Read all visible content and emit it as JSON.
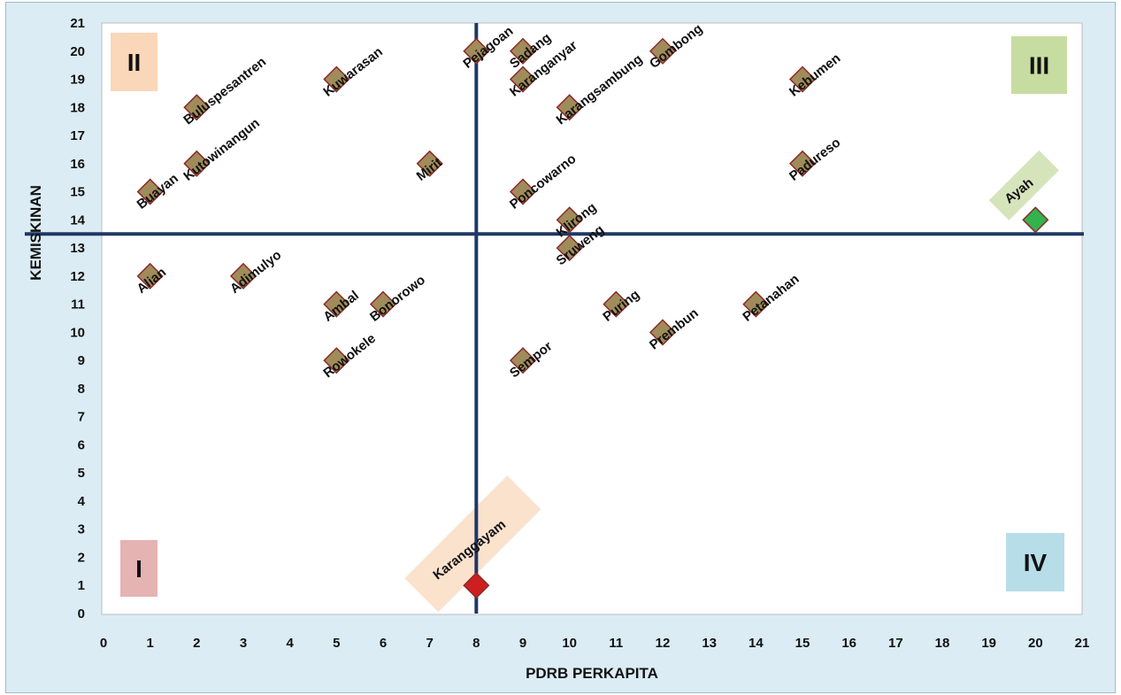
{
  "chart_data": {
    "type": "scatter",
    "title": "",
    "xlabel": "PDRB PERKAPITA",
    "ylabel": "KEMISKINAN",
    "xlim": [
      0,
      21
    ],
    "ylim": [
      0,
      21
    ],
    "xticks": [
      "0",
      "1",
      "2",
      "3",
      "4",
      "5",
      "6",
      "7",
      "8",
      "9",
      "10",
      "11",
      "12",
      "13",
      "14",
      "15",
      "16",
      "17",
      "18",
      "19",
      "20",
      "21"
    ],
    "yticks": [
      "0",
      "1",
      "2",
      "3",
      "4",
      "5",
      "6",
      "7",
      "8",
      "9",
      "10",
      "11",
      "12",
      "13",
      "14",
      "15",
      "16",
      "17",
      "18",
      "19",
      "20",
      "21"
    ],
    "grid": false,
    "divider_lines": {
      "x": 8,
      "y": 13.5,
      "color": "#1f3864"
    },
    "quadrants": [
      {
        "label": "I",
        "position": "bottom-left",
        "color": "#e6b3b3"
      },
      {
        "label": "II",
        "position": "top-left",
        "color": "#fad7b8"
      },
      {
        "label": "III",
        "position": "top-right",
        "color": "#c6dca0"
      },
      {
        "label": "IV",
        "position": "bottom-right",
        "color": "#b7dde8"
      }
    ],
    "marker_colors": {
      "default": "#a08c5a",
      "highlight_high": "#33b34d",
      "highlight_low": "#cc1f1f"
    },
    "points": [
      {
        "name": "Buluspesantren",
        "x": 2,
        "y": 18,
        "kind": "default"
      },
      {
        "name": "Kuwarasan",
        "x": 5,
        "y": 19,
        "kind": "default"
      },
      {
        "name": "Pejagoan",
        "x": 8,
        "y": 20,
        "kind": "default"
      },
      {
        "name": "Sadang",
        "x": 9,
        "y": 20,
        "kind": "default"
      },
      {
        "name": "Karanganyar",
        "x": 9,
        "y": 19,
        "kind": "default"
      },
      {
        "name": "Karangsambung",
        "x": 10,
        "y": 18,
        "kind": "default"
      },
      {
        "name": "Gombong",
        "x": 12,
        "y": 20,
        "kind": "default"
      },
      {
        "name": "Kebumen",
        "x": 15,
        "y": 19,
        "kind": "default"
      },
      {
        "name": "Kutowinangun",
        "x": 2,
        "y": 16,
        "kind": "default"
      },
      {
        "name": "Buayan",
        "x": 1,
        "y": 15,
        "kind": "default"
      },
      {
        "name": "Mirit",
        "x": 7,
        "y": 16,
        "kind": "default"
      },
      {
        "name": "Poncowarno",
        "x": 9,
        "y": 15,
        "kind": "default"
      },
      {
        "name": "Klirong",
        "x": 10,
        "y": 14,
        "kind": "default"
      },
      {
        "name": "Padureso",
        "x": 15,
        "y": 16,
        "kind": "default"
      },
      {
        "name": "Ayah",
        "x": 20,
        "y": 14,
        "kind": "highlight_high"
      },
      {
        "name": "Sruweng",
        "x": 10,
        "y": 13,
        "kind": "default"
      },
      {
        "name": "Alian",
        "x": 1,
        "y": 12,
        "kind": "default"
      },
      {
        "name": "Adimulyo",
        "x": 3,
        "y": 12,
        "kind": "default"
      },
      {
        "name": "Ambal",
        "x": 5,
        "y": 11,
        "kind": "default"
      },
      {
        "name": "Bonorowo",
        "x": 6,
        "y": 11,
        "kind": "default"
      },
      {
        "name": "Puring",
        "x": 11,
        "y": 11,
        "kind": "default"
      },
      {
        "name": "Petanahan",
        "x": 14,
        "y": 11,
        "kind": "default"
      },
      {
        "name": "Prembun",
        "x": 12,
        "y": 10,
        "kind": "default"
      },
      {
        "name": "Rowokele",
        "x": 5,
        "y": 9,
        "kind": "default"
      },
      {
        "name": "Sempor",
        "x": 9,
        "y": 9,
        "kind": "default"
      },
      {
        "name": "Karanggayam",
        "x": 8,
        "y": 1,
        "kind": "highlight_low"
      }
    ]
  }
}
